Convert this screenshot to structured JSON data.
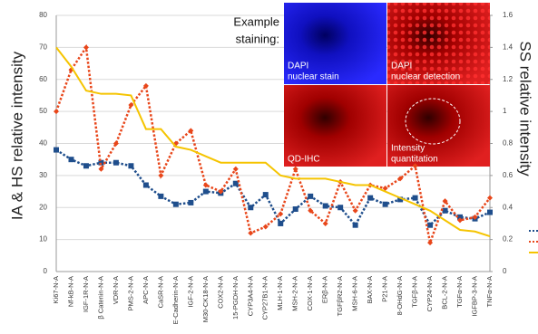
{
  "chart_data": {
    "type": "line",
    "y_label": "IA & HS relative intensity",
    "y2_label": "SS relative intensity",
    "categories": [
      "Ki67-N-A",
      "Nf-kB-N-A",
      "IGF-1R-N-A",
      "β Catenin-N-A",
      "VDR-N-A",
      "PMS-2-N-A",
      "APC-N-A",
      "CaSR-N-A",
      "E-Cadherin-N-A",
      "IGF-2-N-A",
      "M30-CK18-N-A",
      "COX2-N-A",
      "15-PGDH-N-A",
      "CYP3A4-N-A",
      "CYP27B1-N-A",
      "MLH-1-N-A",
      "MSH-2-N-A",
      "COX-1-N-A",
      "ERβ-N-A",
      "TGFβR2-N-A",
      "MSH-6-N-A",
      "BAX-N-A",
      "P21-N-A",
      "8-OHdG-N-A",
      "TGFβ-N-A",
      "CYP24-N-A",
      "BCL-2-N-A",
      "TGFα-N-A",
      "IGFBP-3-N-A",
      "TNFα-N-A"
    ],
    "series": [
      {
        "color": "#1f4e8c",
        "style": "dotted-square",
        "values": [
          38,
          35,
          33,
          34,
          34,
          33,
          27,
          23.5,
          21,
          21.5,
          25,
          24.5,
          27.5,
          20,
          24,
          15,
          19.5,
          23.5,
          20.5,
          20,
          14.5,
          23,
          21,
          22.5,
          23,
          14.5,
          19,
          17,
          16.5,
          18.5
        ]
      },
      {
        "color": "#e8461a",
        "style": "dotted-diamond",
        "values": [
          50,
          63,
          70,
          32,
          40,
          52,
          58,
          30,
          40,
          44,
          27,
          25,
          32,
          12,
          14,
          18,
          32,
          19,
          15,
          28,
          19,
          27,
          26,
          29,
          33,
          9,
          22,
          16,
          17,
          23
        ]
      },
      {
        "color": "#f5c400",
        "style": "solid",
        "axis": "y2",
        "values": [
          1.4,
          1.28,
          1.13,
          1.11,
          1.11,
          1.1,
          0.89,
          0.89,
          0.78,
          0.76,
          0.72,
          0.68,
          0.68,
          0.68,
          0.68,
          0.6,
          0.58,
          0.58,
          0.58,
          0.56,
          0.54,
          0.54,
          0.5,
          0.46,
          0.42,
          0.38,
          0.32,
          0.26,
          0.25,
          0.22
        ]
      }
    ],
    "ylim": [
      0,
      80
    ],
    "yticks": [
      0,
      10,
      20,
      30,
      40,
      50,
      60,
      70,
      80
    ],
    "y2lim": [
      0,
      1.6
    ],
    "y2ticks": [
      0,
      0.2,
      0.4,
      0.6,
      0.8,
      1,
      1.2,
      1.4,
      1.6
    ],
    "grid": true,
    "inset": {
      "caption": [
        "Example",
        "staining:"
      ],
      "panels": [
        [
          "DAPI",
          "nuclear stain"
        ],
        [
          "DAPI",
          "nuclear detection"
        ],
        [
          "QD-IHC"
        ],
        [
          "Intensity",
          "quantitation"
        ]
      ]
    }
  }
}
